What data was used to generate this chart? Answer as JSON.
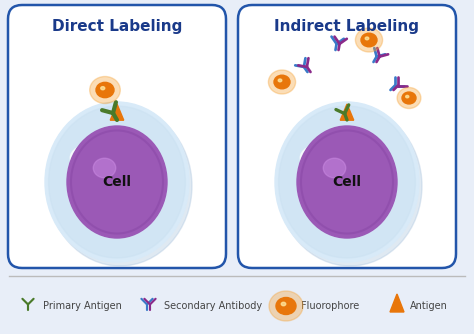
{
  "title_direct": "Direct Labeling",
  "title_indirect": "Indirect Labeling",
  "title_color": "#1a3a8a",
  "title_fontsize": 11,
  "bg_color": "#e8eef8",
  "box_edge_color": "#2255aa",
  "box_bg": "#ffffff",
  "cell_outer_color_center": "#d8eaf8",
  "cell_outer_color_edge": "#b8d4ee",
  "cell_inner_color": "#9b59b6",
  "cell_inner_color_edge": "#7a3a9a",
  "cell_text": "Cell",
  "cell_text_color": "#111111",
  "antigen_color": "#e8760a",
  "primary_ab_color": "#4a7a2a",
  "secondary_ab_color1": "#3a7ac8",
  "secondary_ab_color2": "#8a2a8a",
  "fluorophore_color": "#e8760a",
  "fluorophore_glow": "#f5a030",
  "legend_labels": [
    "Primary Antigen",
    "Secondary Antibody",
    "Fluorophore",
    "Antigen"
  ]
}
